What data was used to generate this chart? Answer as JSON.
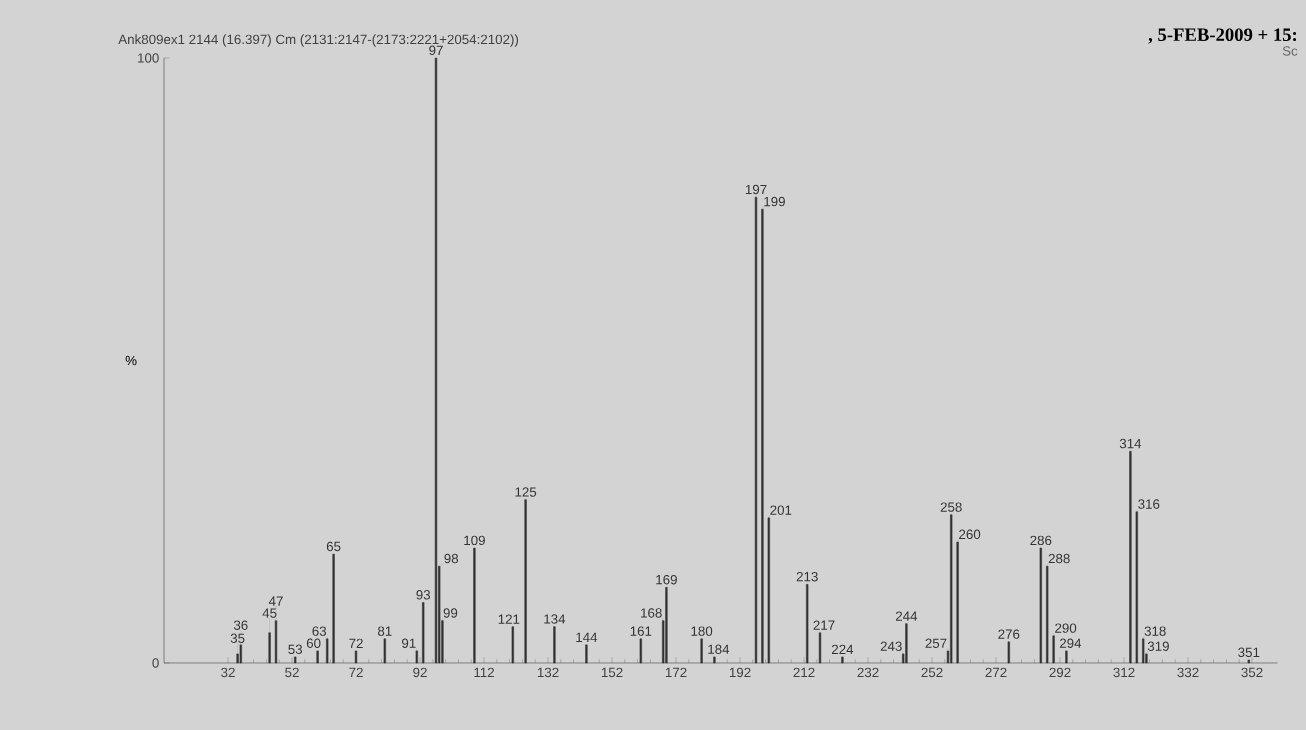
{
  "chart_data": {
    "type": "bar",
    "title": "Ank809ex1 2144 (16.397) Cm (2131:2147-(2173:2221+2054:2102))",
    "subtitle": ", 5-FEB-2009 + 15:",
    "ylabel": "%",
    "x": [
      35,
      36,
      45,
      47,
      53,
      60,
      63,
      65,
      72,
      81,
      91,
      93,
      97,
      98,
      99,
      109,
      121,
      125,
      134,
      144,
      161,
      168,
      169,
      180,
      184,
      197,
      199,
      201,
      213,
      217,
      224,
      243,
      244,
      257,
      258,
      260,
      276,
      286,
      288,
      290,
      294,
      314,
      316,
      318,
      319,
      351
    ],
    "values": [
      1.5,
      3,
      5,
      7,
      1,
      2,
      4,
      18,
      2,
      4,
      2,
      10,
      100,
      16,
      7,
      19,
      6,
      27,
      6,
      3,
      4,
      7,
      12.5,
      4,
      1,
      77,
      75,
      24,
      13,
      5,
      1,
      1.5,
      6.5,
      2,
      24.5,
      20,
      3.5,
      19,
      16,
      4.5,
      2,
      35,
      25,
      4,
      1.5,
      0.5
    ],
    "annotations": [
      "Sc",
      {
        "text": "35",
        "x": 35,
        "y": 1.5
      },
      {
        "text": "36",
        "x": 36,
        "y": 3
      },
      {
        "text": "45",
        "x": 45,
        "y": 5
      },
      {
        "text": "47",
        "x": 47,
        "y": 7
      },
      {
        "text": "53",
        "x": 53,
        "y": 1
      },
      {
        "text": "60",
        "x": 60,
        "y": 2
      },
      {
        "text": "63",
        "x": 63,
        "y": 4
      },
      {
        "text": "65",
        "x": 65,
        "y": 18
      },
      {
        "text": "72",
        "x": 72,
        "y": 2
      },
      {
        "text": "81",
        "x": 81,
        "y": 4
      },
      {
        "text": "91",
        "x": 91,
        "y": 2
      },
      {
        "text": "93",
        "x": 93,
        "y": 10
      },
      {
        "text": "97",
        "x": 97,
        "y": 100
      },
      {
        "text": "98",
        "x": 98,
        "y": 16
      },
      {
        "text": "99",
        "x": 99,
        "y": 7
      },
      {
        "text": "109",
        "x": 109,
        "y": 19
      },
      {
        "text": "121",
        "x": 121,
        "y": 6
      },
      {
        "text": "125",
        "x": 125,
        "y": 27
      },
      {
        "text": "134",
        "x": 134,
        "y": 6
      },
      {
        "text": "144",
        "x": 144,
        "y": 3
      },
      {
        "text": "161",
        "x": 161,
        "y": 4
      },
      {
        "text": "168",
        "x": 168,
        "y": 7
      },
      {
        "text": "169",
        "x": 169,
        "y": 12.5
      },
      {
        "text": "180",
        "x": 180,
        "y": 4
      },
      {
        "text": "184",
        "x": 184,
        "y": 1
      },
      {
        "text": "197",
        "x": 197,
        "y": 77
      },
      {
        "text": "199",
        "x": 199,
        "y": 75
      },
      {
        "text": "201",
        "x": 201,
        "y": 24
      },
      {
        "text": "213",
        "x": 213,
        "y": 13
      },
      {
        "text": "217",
        "x": 217,
        "y": 5
      },
      {
        "text": "224",
        "x": 224,
        "y": 1
      },
      {
        "text": "243",
        "x": 243,
        "y": 1.5
      },
      {
        "text": "244",
        "x": 244,
        "y": 6.5
      },
      {
        "text": "257",
        "x": 257,
        "y": 2
      },
      {
        "text": "258",
        "x": 258,
        "y": 24.5
      },
      {
        "text": "260",
        "x": 260,
        "y": 20
      },
      {
        "text": "276",
        "x": 276,
        "y": 3.5
      },
      {
        "text": "286",
        "x": 286,
        "y": 19
      },
      {
        "text": "288",
        "x": 288,
        "y": 16
      },
      {
        "text": "290",
        "x": 290,
        "y": 4.5
      },
      {
        "text": "294",
        "x": 294,
        "y": 2
      },
      {
        "text": "314",
        "x": 314,
        "y": 35
      },
      {
        "text": "316",
        "x": 316,
        "y": 25
      },
      {
        "text": "318",
        "x": 318,
        "y": 4
      },
      {
        "text": "319",
        "x": 319,
        "y": 1.5
      },
      {
        "text": "351",
        "x": 351,
        "y": 0.5
      }
    ],
    "color": "#333333",
    "xlim": [
      12,
      360
    ],
    "ylim": [
      0,
      100
    ],
    "xticks": [
      32,
      52,
      72,
      92,
      112,
      132,
      152,
      172,
      192,
      212,
      232,
      252,
      272,
      292,
      312,
      332,
      352
    ],
    "yticks": [
      0,
      100
    ]
  }
}
